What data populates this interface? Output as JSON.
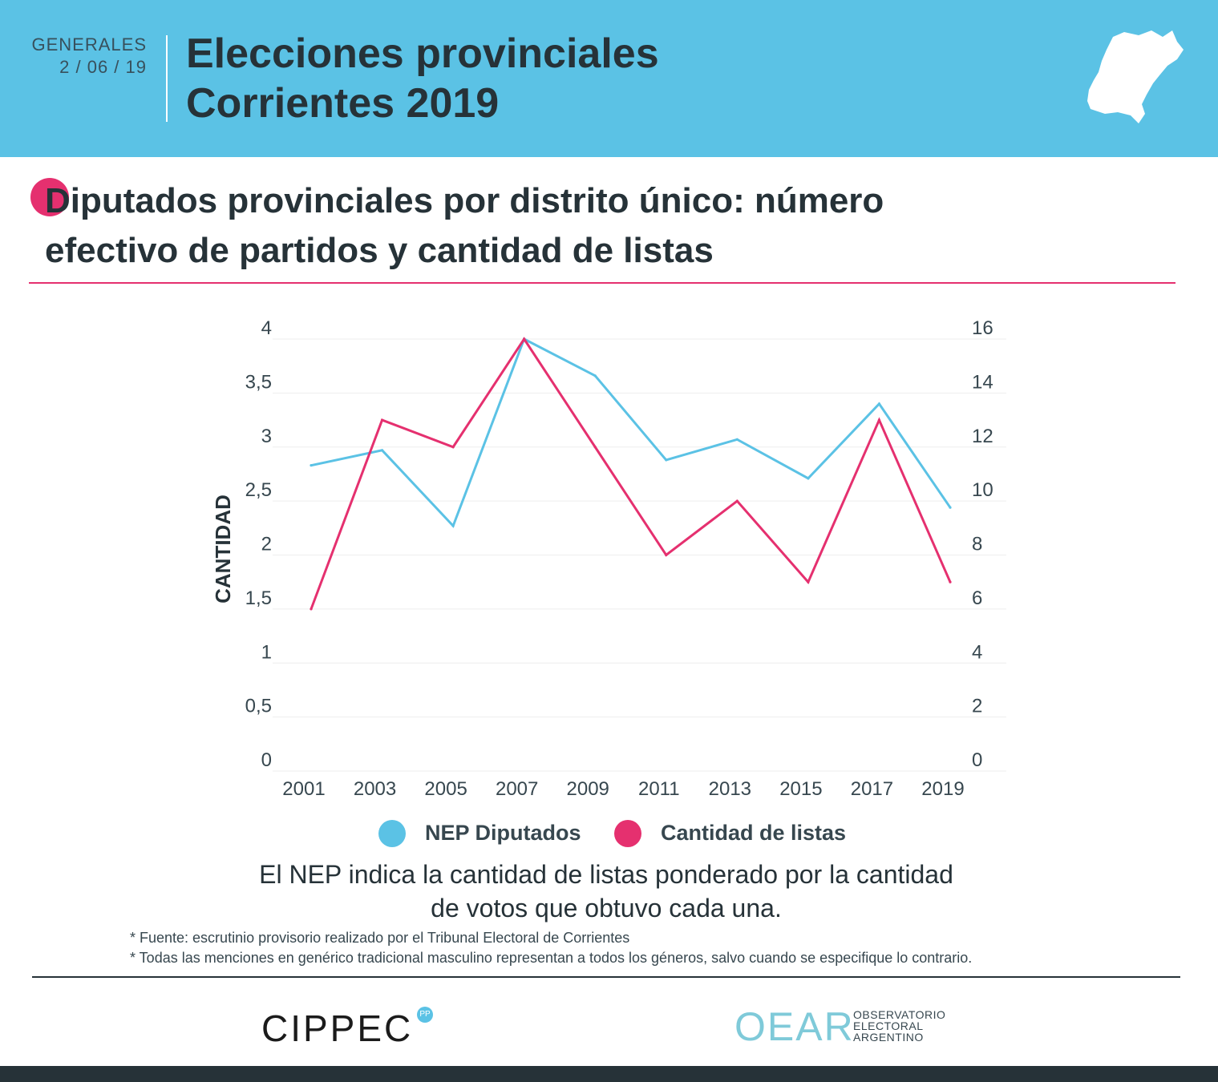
{
  "header": {
    "kicker_line1": "GENERALES",
    "kicker_line2": "2 / 06 / 19",
    "title_line1": "Elecciones provinciales",
    "title_line2": "Corrientes 2019"
  },
  "section": {
    "title_line1": "Diputados provinciales por distrito único: número",
    "title_line2": "efectivo de partidos y cantidad de listas"
  },
  "chart_data": {
    "type": "line",
    "title": "",
    "xlabel": "",
    "ylabel": "CANTIDAD",
    "ylim": [
      0,
      4
    ],
    "y2lim": [
      0,
      16
    ],
    "y_ticks": [
      "0",
      "0,5",
      "1",
      "1,5",
      "2",
      "2,5",
      "3",
      "3,5",
      "4"
    ],
    "y2_ticks": [
      "0",
      "2",
      "4",
      "6",
      "8",
      "10",
      "12",
      "14",
      "16"
    ],
    "x": [
      "2001",
      "2003",
      "2005",
      "2007",
      "2009",
      "2011",
      "2013",
      "2015",
      "2017",
      "2019"
    ],
    "series": [
      {
        "name": "NEP Diputados",
        "axis": "left",
        "color": "#5bc2e5",
        "values": [
          2.83,
          2.97,
          2.27,
          4.0,
          3.66,
          2.88,
          3.07,
          2.71,
          3.4,
          2.44
        ]
      },
      {
        "name": "Cantidad de listas",
        "axis": "right",
        "color": "#e5306f",
        "values": [
          6,
          13,
          12,
          16,
          12,
          8,
          10,
          7,
          13,
          7
        ]
      }
    ],
    "grid": true,
    "legend": "bottom"
  },
  "note": {
    "line1": "El NEP indica la cantidad de listas ponderado por la cantidad",
    "line2": "de votos que obtuvo cada una."
  },
  "footnotes": [
    "* Fuente: escrutinio provisorio realizado por el Tribunal Electoral de Corrientes",
    "* Todas las menciones en genérico tradicional masculino representan a todos los géneros, salvo cuando se especifique lo contrario."
  ],
  "logos": {
    "cippec": "CIPPEC",
    "cippec_badge": "PP",
    "oear": "OEAR",
    "oear_line1": "OBSERVATORIO",
    "oear_line2": "ELECTORAL",
    "oear_line3": "ARGENTINO"
  },
  "colors": {
    "header_bg": "#5bc2e5",
    "accent_pink": "#e5306f",
    "accent_blue": "#5bc2e5",
    "text_dark": "#263238"
  }
}
